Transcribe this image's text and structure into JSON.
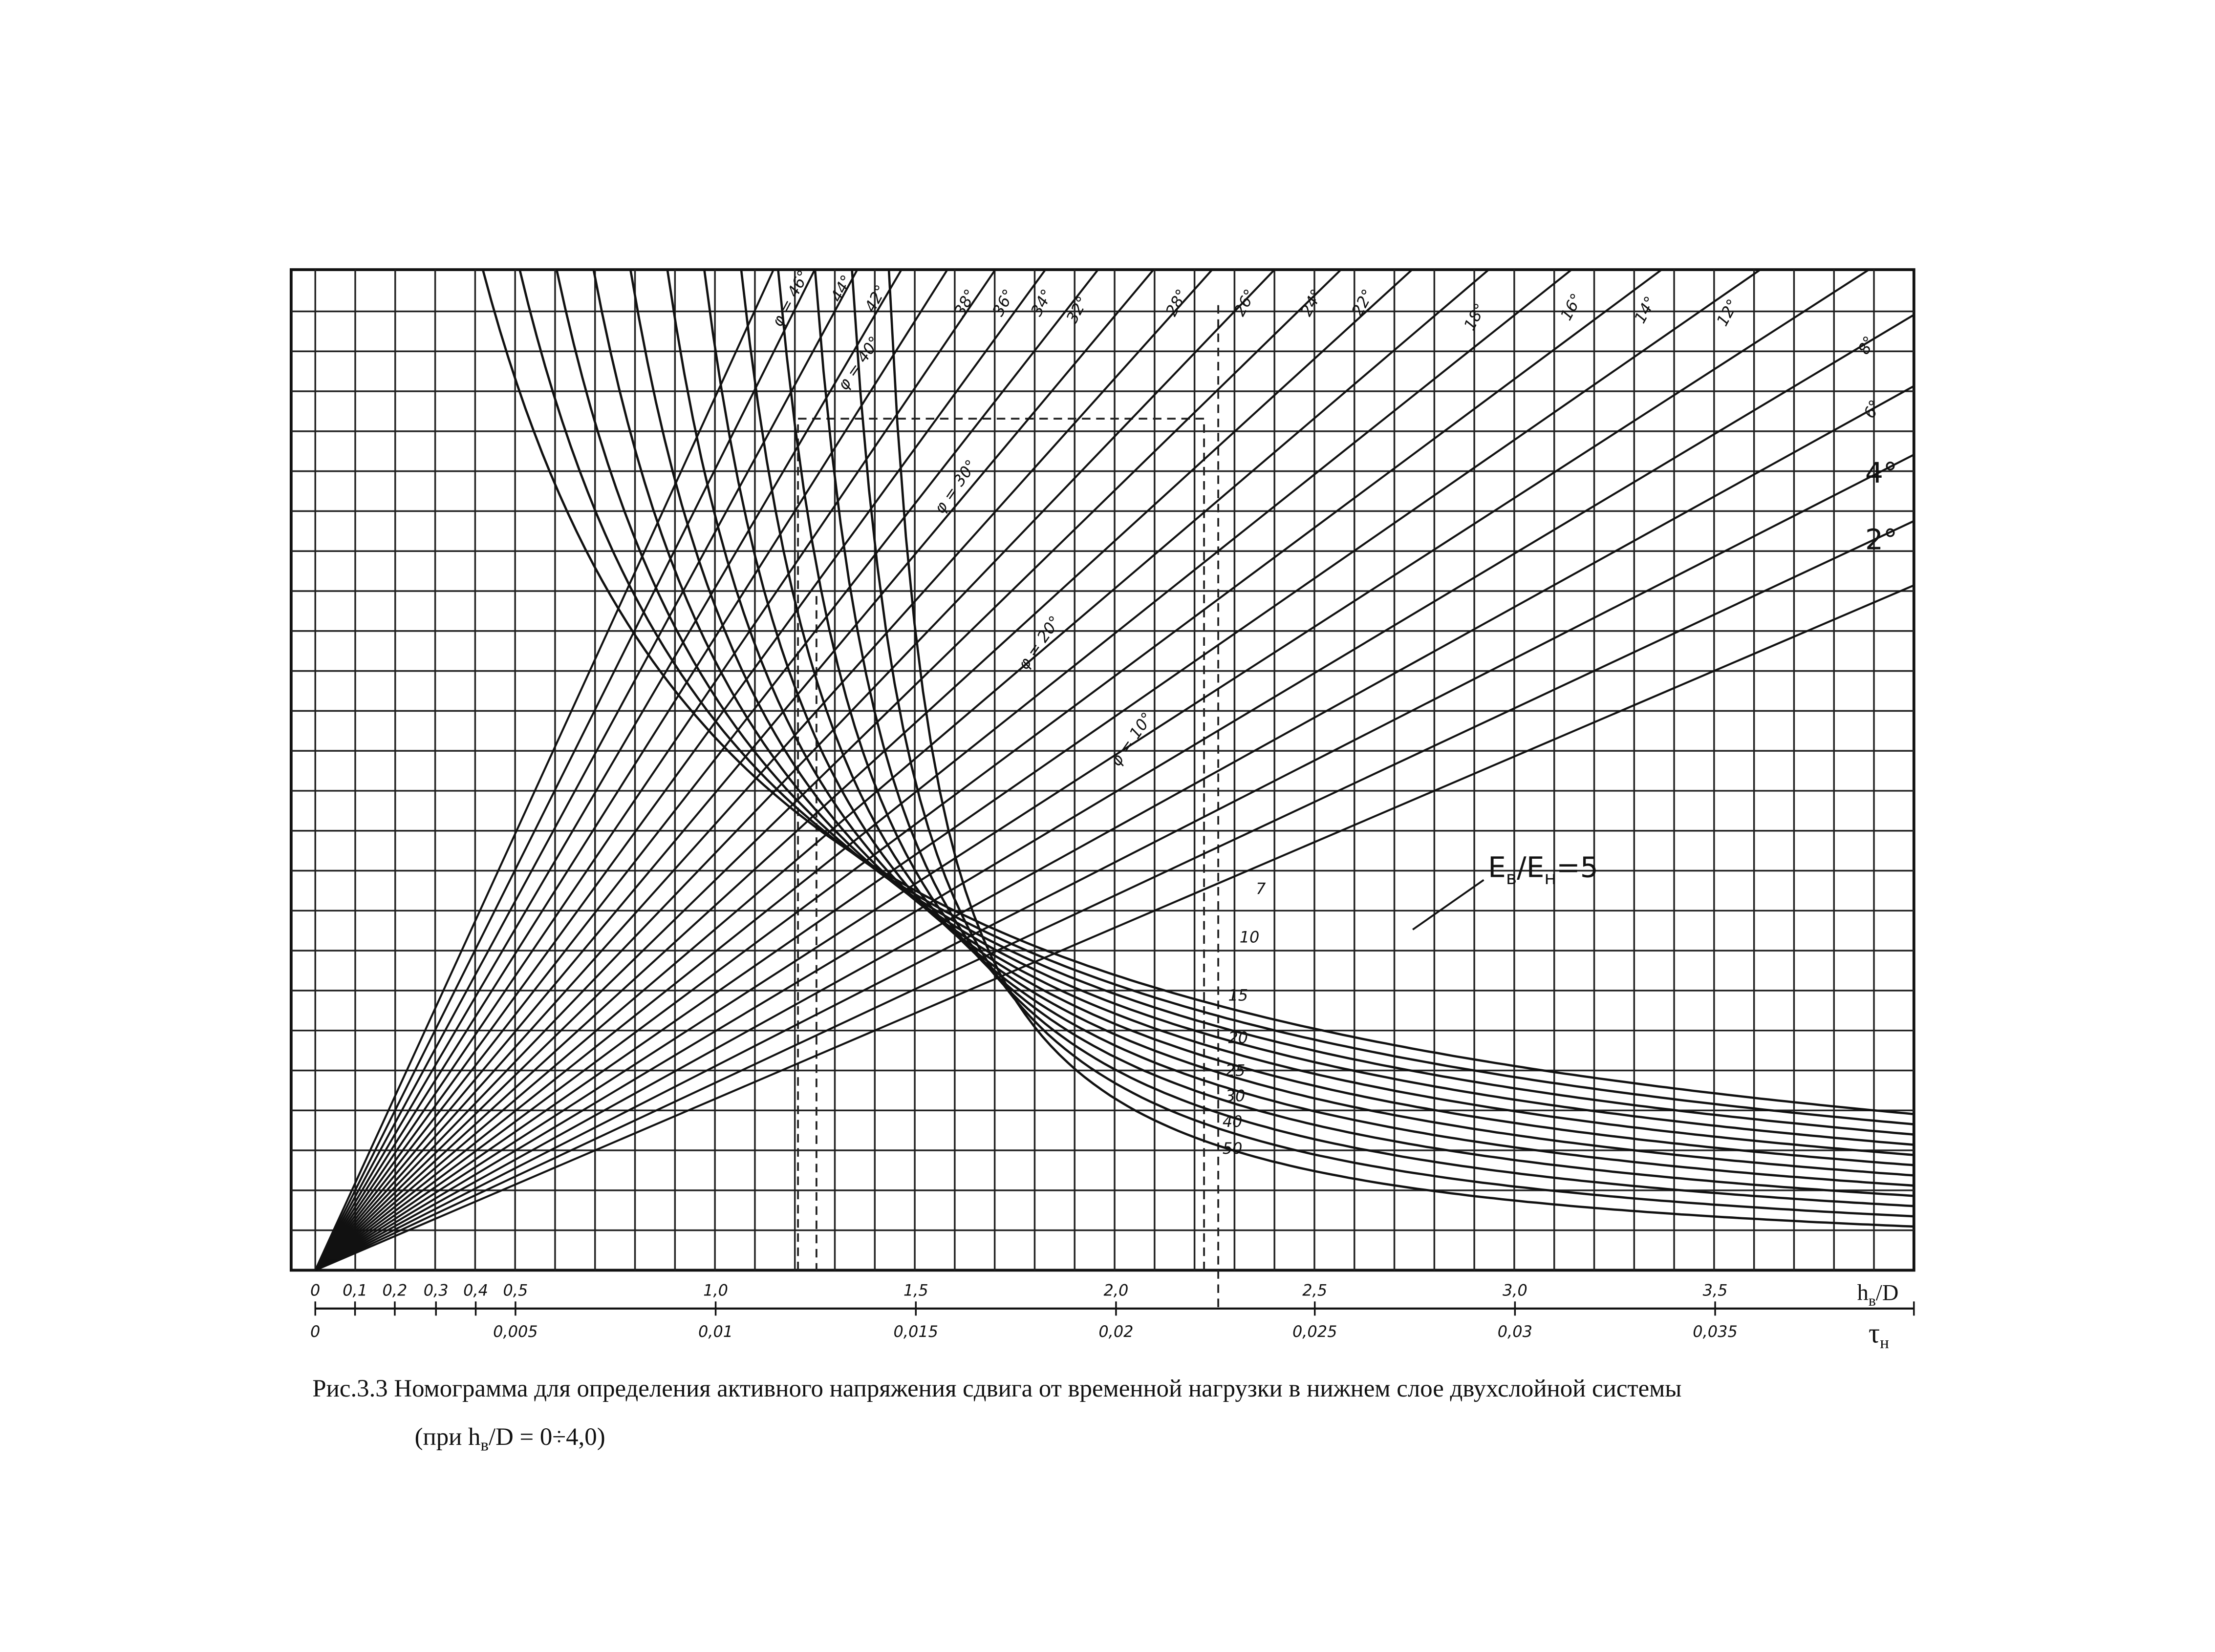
{
  "figure": {
    "top_labels": [
      "φ = 46°",
      "44°",
      "42°",
      "38°",
      "36°",
      "34°",
      "32°",
      "28°",
      "26°",
      "24°",
      "22°",
      "18°",
      "16°",
      "14°",
      "12°",
      "8°",
      "6°",
      "4°",
      "2°"
    ],
    "inline_labels": [
      "φ = 40°",
      "φ = 30°",
      "φ = 20°",
      "φ = 10°"
    ],
    "e_label": [
      "E",
      "в",
      "/E",
      "н",
      "=5"
    ],
    "curve_labels": [
      "7",
      "10",
      "15",
      "20",
      "25",
      "30",
      "40",
      "50"
    ],
    "axis1_labels": [
      "0",
      "0,1",
      "0,2",
      "0,3",
      "0,4",
      "0,5",
      "1,0",
      "1,5",
      "2,0",
      "2,5",
      "3,0",
      "3,5"
    ],
    "axis1_title": [
      "h",
      "в",
      "/D"
    ],
    "axis2_labels": [
      "0",
      "0,005",
      "0,01",
      "0,015",
      "0,02",
      "0,025",
      "0,03",
      "0,035"
    ],
    "axis2_title": [
      "τ",
      "н"
    ],
    "caption": {
      "line1": "Рис.3.3 Номограмма для определения активного напряжения сдвига от временной нагрузки в нижнем слое двухслойной системы",
      "line2": [
        "(при h",
        "в",
        "/D =  0÷4,0)"
      ]
    }
  }
}
